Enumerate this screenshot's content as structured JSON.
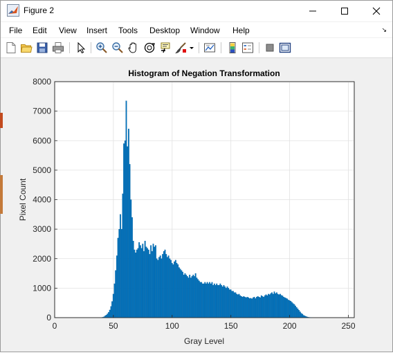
{
  "window": {
    "title": "Figure 2",
    "icon": "matlab-icon",
    "controls": [
      "minimize-icon",
      "maximize-icon",
      "close-icon"
    ]
  },
  "menu": {
    "items": [
      "File",
      "Edit",
      "View",
      "Insert",
      "Tools",
      "Desktop",
      "Window",
      "Help"
    ],
    "overflow": "↘"
  },
  "toolbar": {
    "buttons": [
      "new-figure",
      "open-file",
      "save-figure",
      "print-figure",
      "edit-plot",
      "zoom-in",
      "zoom-out",
      "pan",
      "rotate-3d",
      "data-cursor",
      "brush",
      "brush-dropdown",
      "link-plot",
      "insert-colorbar",
      "insert-legend",
      "hide-plot-tools",
      "show-plot-tools"
    ]
  },
  "colors": {
    "bar": "#0072BD",
    "bar_edge": "#005c9a",
    "axes_bg": "#ffffff",
    "figure_bg": "#f0f0f0",
    "grid": "#e1e1e1"
  },
  "chart_data": {
    "type": "bar",
    "title": "Histogram of Negation Transformation",
    "xlabel": "Gray Level",
    "ylabel": "Pixel Count",
    "xlim": [
      0,
      255
    ],
    "ylim": [
      0,
      8000
    ],
    "xticks": [
      0,
      50,
      100,
      150,
      200,
      250
    ],
    "yticks": [
      0,
      1000,
      2000,
      3000,
      4000,
      5000,
      6000,
      7000,
      8000
    ],
    "grid": true,
    "x_start": 40,
    "values": [
      5,
      15,
      30,
      60,
      90,
      130,
      180,
      260,
      380,
      550,
      800,
      1150,
      1600,
      2100,
      2700,
      3000,
      3500,
      3000,
      4200,
      5900,
      6000,
      7350,
      5800,
      6400,
      5200,
      4000,
      3400,
      2600,
      2300,
      2200,
      2300,
      2350,
      2550,
      2450,
      2350,
      2500,
      2250,
      2600,
      2400,
      2350,
      2300,
      2150,
      2450,
      2250,
      2500,
      2400,
      2450,
      2000,
      1950,
      2050,
      2100,
      2000,
      2150,
      2250,
      2300,
      2150,
      2050,
      2100,
      2000,
      1950,
      1850,
      1800,
      1900,
      1950,
      1850,
      1800,
      1700,
      1650,
      1600,
      1550,
      1450,
      1500,
      1450,
      1400,
      1350,
      1450,
      1350,
      1400,
      1450,
      1400,
      1500,
      1350,
      1300,
      1250,
      1200,
      1200,
      1150,
      1150,
      1200,
      1150,
      1200,
      1150,
      1200,
      1150,
      1200,
      1100,
      1150,
      1100,
      1150,
      1100,
      1100,
      1150,
      1100,
      1050,
      1100,
      1050,
      1000,
      1050,
      1000,
      950,
      950,
      900,
      900,
      850,
      850,
      800,
      780,
      800,
      750,
      720,
      700,
      720,
      700,
      680,
      700,
      680,
      650,
      660,
      640,
      680,
      700,
      650,
      700,
      720,
      700,
      680,
      750,
      720,
      700,
      750,
      780,
      750,
      800,
      780,
      820,
      850,
      800,
      880,
      820,
      850,
      800,
      780,
      800,
      760,
      740,
      700,
      680,
      660,
      640,
      600,
      580,
      560,
      520,
      480,
      450,
      400,
      350,
      300,
      250,
      200,
      150,
      120,
      80,
      60,
      40,
      25,
      15,
      10,
      5,
      2
    ]
  }
}
